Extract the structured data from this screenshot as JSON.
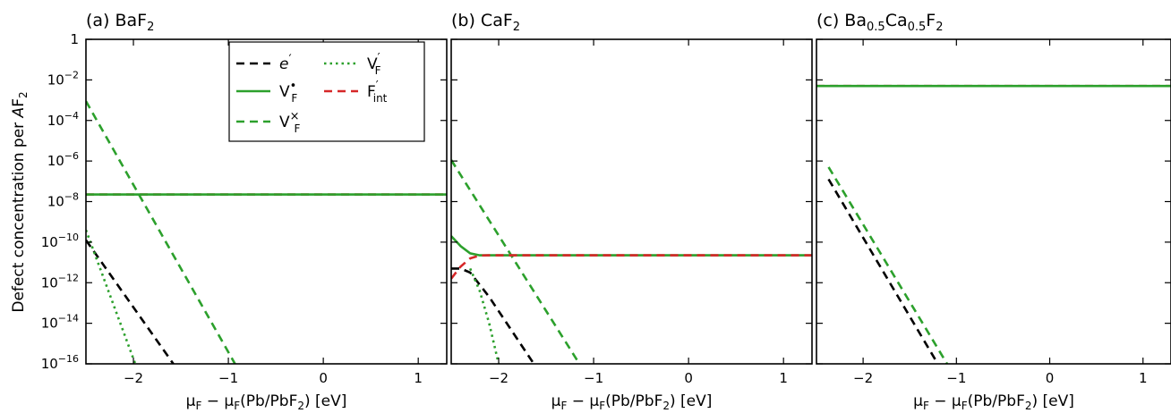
{
  "figure": {
    "ylabel_main": "Defect concentration per ",
    "ylabel_italic": "A",
    "ylabel_tail": "F",
    "ylabel_sub": "2",
    "xlabel": {
      "mu1": "μ",
      "sub1": "F",
      "mid": " − μ",
      "sub2": "F",
      "paren": "(Pb/PbF",
      "sub3": "2",
      "tail": ") [eV]"
    }
  },
  "legend": [
    {
      "key": "e",
      "main": "e",
      "sup": "′",
      "sub": "",
      "color": "#000000",
      "dash": "9,6"
    },
    {
      "key": "VF_dot",
      "main": "V",
      "sup": "•",
      "sub": "F",
      "color": "#2ca02c",
      "dash": ""
    },
    {
      "key": "VF_x",
      "main": "V",
      "sup": "×",
      "sub": "F",
      "color": "#2ca02c",
      "dash": "9,6"
    },
    {
      "key": "VF_prime",
      "main": "V",
      "sup": "′",
      "sub": "F",
      "color": "#2ca02c",
      "dash": "2.5,4"
    },
    {
      "key": "Fint",
      "main": "F",
      "sup": "′",
      "sub": "int",
      "color": "#d62728",
      "dash": "9,6"
    }
  ],
  "y_ticks": [
    {
      "exp": 0,
      "base": "1",
      "sup": ""
    },
    {
      "exp": -2,
      "base": "10",
      "sup": "−2"
    },
    {
      "exp": -4,
      "base": "10",
      "sup": "−4"
    },
    {
      "exp": -6,
      "base": "10",
      "sup": "−6"
    },
    {
      "exp": -8,
      "base": "10",
      "sup": "−8"
    },
    {
      "exp": -10,
      "base": "10",
      "sup": "−10"
    },
    {
      "exp": -12,
      "base": "10",
      "sup": "−12"
    },
    {
      "exp": -14,
      "base": "10",
      "sup": "−14"
    },
    {
      "exp": -16,
      "base": "10",
      "sup": "−16"
    }
  ],
  "x_ticks": [
    {
      "value": -2,
      "label": "−2"
    },
    {
      "value": -1,
      "label": "−1"
    },
    {
      "value": 0,
      "label": "0"
    },
    {
      "value": 1,
      "label": "1"
    }
  ],
  "chart_data": [
    {
      "type": "line",
      "title": "(a) BaF",
      "title_sub": "2",
      "title_tail": "",
      "xlim": [
        -2.5,
        1.3
      ],
      "ylim_log10": [
        -16,
        0
      ],
      "yscale": "log",
      "series": [
        {
          "name": "Fint",
          "color": "#d62728",
          "dash": "9,6",
          "x": [
            -2.5,
            1.3
          ],
          "log10_y": [
            -7.65,
            -7.65
          ]
        },
        {
          "name": "VF_dot",
          "color": "#2ca02c",
          "dash": "",
          "x": [
            -2.5,
            1.3
          ],
          "log10_y": [
            -7.65,
            -7.65
          ]
        },
        {
          "name": "VF_x",
          "color": "#2ca02c",
          "dash": "9,6",
          "x": [
            -2.5,
            -0.93
          ],
          "log10_y": [
            -3.05,
            -16
          ]
        },
        {
          "name": "e",
          "color": "#000000",
          "dash": "9,6",
          "x": [
            -2.5,
            -1.58
          ],
          "log10_y": [
            -9.9,
            -16
          ]
        },
        {
          "name": "VF_prime",
          "color": "#2ca02c",
          "dash": "2.5,4",
          "x": [
            -2.5,
            -1.98
          ],
          "log10_y": [
            -9.4,
            -16
          ]
        }
      ]
    },
    {
      "type": "line",
      "title": "(b) CaF",
      "title_sub": "2",
      "title_tail": "",
      "xlim": [
        -2.5,
        1.3
      ],
      "ylim_log10": [
        -16,
        0
      ],
      "yscale": "log",
      "series": [
        {
          "name": "VF_x",
          "color": "#2ca02c",
          "dash": "9,6",
          "x": [
            -2.5,
            -1.15
          ],
          "log10_y": [
            -5.95,
            -16
          ]
        },
        {
          "name": "VF_dot",
          "color": "#2ca02c",
          "dash": "",
          "x": [
            -2.5,
            -2.4,
            -2.3,
            -2.2,
            -2.1,
            1.3
          ],
          "log10_y": [
            -9.7,
            -10.2,
            -10.55,
            -10.65,
            -10.65,
            -10.65
          ]
        },
        {
          "name": "Fint",
          "color": "#d62728",
          "dash": "9,6",
          "x": [
            -2.5,
            -2.4,
            -2.3,
            -2.2,
            -2.1,
            1.3
          ],
          "log10_y": [
            -11.8,
            -11.2,
            -10.8,
            -10.66,
            -10.65,
            -10.65
          ]
        },
        {
          "name": "e",
          "color": "#000000",
          "dash": "9,6",
          "x": [
            -2.5,
            -2.4,
            -2.3,
            -2.1,
            -1.63
          ],
          "log10_y": [
            -11.3,
            -11.3,
            -11.5,
            -12.7,
            -16
          ]
        },
        {
          "name": "VF_prime",
          "color": "#2ca02c",
          "dash": "2.5,4",
          "x": [
            -2.3,
            -2.2,
            -2.1,
            -2.0
          ],
          "log10_y": [
            -11.3,
            -12.4,
            -14.0,
            -16
          ]
        }
      ]
    },
    {
      "type": "line",
      "title": "(c) Ba",
      "title_sub": "0.5",
      "title_tail": "Ca",
      "title_sub2": "0.5",
      "title_tail2": "F",
      "title_sub3": "2",
      "xlim": [
        -2.5,
        1.3
      ],
      "ylim_log10": [
        -16,
        0
      ],
      "yscale": "log",
      "series": [
        {
          "name": "Fint",
          "color": "#d62728",
          "dash": "9,6",
          "x": [
            -2.5,
            1.3
          ],
          "log10_y": [
            -2.3,
            -2.3
          ]
        },
        {
          "name": "VF_dot",
          "color": "#2ca02c",
          "dash": "",
          "x": [
            -2.5,
            1.3
          ],
          "log10_y": [
            -2.3,
            -2.3
          ]
        },
        {
          "name": "VF_x",
          "color": "#2ca02c",
          "dash": "9,6",
          "x": [
            -2.37,
            -1.1
          ],
          "log10_y": [
            -6.3,
            -16
          ]
        },
        {
          "name": "e",
          "color": "#000000",
          "dash": "9,6",
          "x": [
            -2.37,
            -1.2
          ],
          "log10_y": [
            -6.9,
            -16
          ]
        }
      ]
    }
  ]
}
